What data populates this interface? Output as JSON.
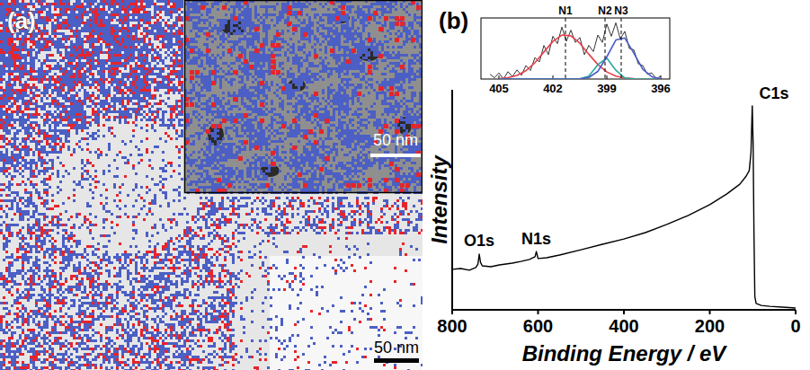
{
  "image_panel": {
    "label": "(a)",
    "scale_bar": "50 nm",
    "inset": {
      "scale_bar": "50 nm"
    }
  },
  "chart_data": [
    {
      "type": "line",
      "panel_label": "(b)",
      "x_label": "Binding Energy / eV",
      "y_label": "Intensity",
      "x": [
        800,
        780,
        760,
        745,
        740,
        737,
        734,
        730,
        710,
        690,
        660,
        640,
        620,
        607,
        604,
        600,
        580,
        550,
        500,
        450,
        400,
        350,
        300,
        250,
        200,
        160,
        130,
        115,
        108,
        104,
        101,
        99,
        97,
        95,
        92,
        80,
        60,
        30,
        0
      ],
      "values": [
        18.4,
        18.8,
        18.0,
        19.2,
        20.8,
        25.3,
        21.6,
        20.0,
        19.6,
        20.4,
        21.2,
        22.0,
        22.9,
        24.1,
        26.5,
        23.3,
        23.7,
        24.9,
        27.3,
        29.8,
        32.2,
        35.1,
        38.8,
        42.9,
        47.8,
        52.7,
        57.1,
        60.8,
        63.3,
        71.4,
        92.7,
        75.5,
        34.7,
        6.1,
        2.9,
        2.0,
        1.6,
        1.2,
        0.8
      ],
      "color": "#000000",
      "xlim": [
        800,
        0
      ],
      "xticks": [
        800,
        600,
        400,
        200,
        0
      ],
      "ylim": [
        0,
        100
      ],
      "tick_labels": "x",
      "annotations": [
        {
          "text": "O1s",
          "x": 737,
          "y": 29
        },
        {
          "text": "N1s",
          "x": 604,
          "y": 30
        },
        {
          "text": "C1s",
          "x": 50,
          "y": 96
        }
      ]
    },
    {
      "type": "line",
      "series": [
        {
          "color": "#000000",
          "x": [
            405.5,
            405.25,
            405,
            404.75,
            404.5,
            404.25,
            404,
            403.75,
            403.5,
            403.25,
            403,
            402.75,
            402.5,
            402.25,
            402,
            401.75,
            401.5,
            401.25,
            401,
            400.75,
            400.5,
            400.25,
            400,
            399.75,
            399.5,
            399.25,
            399,
            398.75,
            398.5,
            398.25,
            398,
            397.75,
            397.5,
            397.25,
            397,
            396.75,
            396.5,
            396.25,
            396
          ],
          "values": [
            8,
            2,
            10,
            0,
            12,
            4,
            15,
            6,
            22,
            14,
            35,
            28,
            55,
            40,
            70,
            58,
            85,
            62,
            80,
            60,
            68,
            40,
            55,
            45,
            72,
            60,
            90,
            70,
            92,
            66,
            78,
            50,
            48,
            25,
            22,
            8,
            10,
            0,
            5
          ]
        },
        {
          "color": "#e8404a",
          "x": [
            405,
            404.5,
            404,
            403.5,
            403,
            402.5,
            402,
            401.5,
            401,
            400.5,
            400,
            399.5,
            399,
            398.5,
            398,
            397.5,
            397,
            396.5,
            396
          ],
          "values": [
            0.6,
            2.1,
            5.8,
            13.6,
            26.8,
            44.3,
            61.6,
            72,
            70.7,
            58.5,
            40.6,
            23.7,
            11.6,
            4.8,
            1.7,
            0.5,
            0.1,
            0,
            0
          ]
        },
        {
          "color": "#2aa8a0",
          "x": [
            405,
            404.5,
            404,
            403.5,
            403,
            402.5,
            402,
            401.5,
            401,
            400.5,
            400,
            399.5,
            399,
            398.5,
            398,
            397.5,
            397,
            396.5,
            396
          ],
          "values": [
            0,
            0,
            0,
            0,
            0,
            0,
            0,
            0,
            0,
            0.3,
            4.7,
            23.6,
            34.2,
            14.4,
            1.8,
            0.1,
            0,
            0,
            0
          ]
        },
        {
          "color": "#4a5cc8",
          "x": [
            405,
            404.5,
            404,
            403.5,
            403,
            402.5,
            402,
            401.5,
            401,
            400.5,
            400,
            399.5,
            399,
            398.5,
            398,
            397.5,
            397,
            396.5,
            396
          ],
          "values": [
            0,
            0,
            0,
            0,
            0,
            0,
            0,
            0,
            0,
            0.3,
            2.6,
            12.5,
            36.4,
            63.9,
            67.2,
            42.5,
            16.1,
            3.7,
            0.5
          ]
        }
      ],
      "xlim": [
        406,
        395.5
      ],
      "xticks": [
        405,
        402,
        399,
        396
      ],
      "ylim": [
        0,
        100
      ],
      "tick_labels": "x",
      "annotations": [
        {
          "text": "N1",
          "x": 401.3
        },
        {
          "text": "N2",
          "x": 399.1
        },
        {
          "text": "N3",
          "x": 398.2
        }
      ]
    }
  ]
}
